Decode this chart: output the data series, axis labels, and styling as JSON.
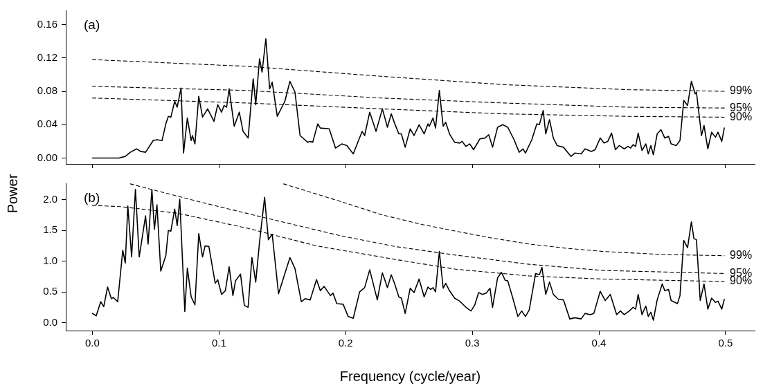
{
  "chart_data": [
    {
      "type": "line",
      "title": "(a)",
      "ylabel": "Power",
      "xlim": [
        -0.021,
        0.523
      ],
      "xticks": [
        {
          "value": 0,
          "label": null
        },
        {
          "value": 0.1,
          "label": null
        },
        {
          "value": 0.2,
          "label": null
        },
        {
          "value": 0.3,
          "label": null
        },
        {
          "value": 0.4,
          "label": null
        },
        {
          "value": 0.5,
          "label": null
        }
      ],
      "ylim": [
        -0.007,
        0.177
      ],
      "yticks": [
        {
          "value": 0,
          "label": "0.00"
        },
        {
          "value": 0.04,
          "label": "0.04"
        },
        {
          "value": 0.08,
          "label": "0.08"
        },
        {
          "value": 0.12,
          "label": "0.12"
        },
        {
          "value": 0.16,
          "label": "0.16"
        }
      ],
      "tick_labels": "y",
      "legend": false,
      "grid": false,
      "marker": "none",
      "series": [
        {
          "color": "#000000",
          "line_style": "solid",
          "x": [
            0,
            0.021,
            0.026,
            0.03,
            0.035,
            0.038,
            0.042,
            0.048,
            0.051,
            0.055,
            0.058,
            0.06,
            0.062,
            0.065,
            0.067,
            0.07,
            0.072,
            0.075,
            0.078,
            0.079,
            0.081,
            0.084,
            0.087,
            0.091,
            0.096,
            0.099,
            0.102,
            0.104,
            0.106,
            0.108,
            0.112,
            0.116,
            0.119,
            0.123,
            0.127,
            0.129,
            0.132,
            0.134,
            0.137,
            0.14,
            0.142,
            0.146,
            0.152,
            0.156,
            0.16,
            0.164,
            0.17,
            0.172,
            0.174,
            0.178,
            0.18,
            0.187,
            0.192,
            0.197,
            0.201,
            0.206,
            0.213,
            0.215,
            0.219,
            0.224,
            0.229,
            0.233,
            0.236,
            0.2386,
            0.242,
            0.244,
            0.247,
            0.251,
            0.254,
            0.258,
            0.262,
            0.265,
            0.266,
            0.269,
            0.271,
            0.274,
            0.277,
            0.279,
            0.282,
            0.286,
            0.29,
            0.292,
            0.295,
            0.298,
            0.301,
            0.306,
            0.31,
            0.313,
            0.316,
            0.32,
            0.324,
            0.328,
            0.333,
            0.337,
            0.34,
            0.342,
            0.347,
            0.351,
            0.353,
            0.356,
            0.358,
            0.361,
            0.364,
            0.367,
            0.372,
            0.378,
            0.381,
            0.386,
            0.389,
            0.394,
            0.397,
            0.401,
            0.404,
            0.407,
            0.41,
            0.413,
            0.416,
            0.42,
            0.423,
            0.425,
            0.427,
            0.429,
            0.431,
            0.434,
            0.437,
            0.439,
            0.441,
            0.443,
            0.446,
            0.449,
            0.452,
            0.455,
            0.457,
            0.461,
            0.464,
            0.467,
            0.47,
            0.473,
            0.476,
            0.477,
            0.481,
            0.483,
            0.486,
            0.489,
            0.492,
            0.494,
            0.497,
            0.499
          ],
          "values": [
            0,
            0,
            0.002,
            0.007,
            0.011,
            0.008,
            0.007,
            0.021,
            0.022,
            0.021,
            0.041,
            0.05,
            0.049,
            0.068,
            0.061,
            0.084,
            0.006,
            0.048,
            0.021,
            0.027,
            0.017,
            0.074,
            0.049,
            0.059,
            0.044,
            0.064,
            0.055,
            0.063,
            0.061,
            0.083,
            0.038,
            0.055,
            0.032,
            0.024,
            0.095,
            0.064,
            0.119,
            0.103,
            0.143,
            0.083,
            0.091,
            0.05,
            0.068,
            0.092,
            0.079,
            0.027,
            0.019,
            0.02,
            0.019,
            0.041,
            0.036,
            0.035,
            0.012,
            0.017,
            0.015,
            0.005,
            0.032,
            0.027,
            0.055,
            0.032,
            0.059,
            0.037,
            0.053,
            0.042,
            0.029,
            0.029,
            0.013,
            0.035,
            0.027,
            0.04,
            0.029,
            0.041,
            0.038,
            0.048,
            0.036,
            0.081,
            0.038,
            0.043,
            0.029,
            0.019,
            0.018,
            0.02,
            0.014,
            0.017,
            0.01,
            0.023,
            0.024,
            0.028,
            0.013,
            0.037,
            0.04,
            0.037,
            0.022,
            0.007,
            0.011,
            0.006,
            0.022,
            0.041,
            0.04,
            0.057,
            0.029,
            0.046,
            0.024,
            0.015,
            0.013,
            0.002,
            0.006,
            0.005,
            0.011,
            0.008,
            0.01,
            0.024,
            0.018,
            0.02,
            0.03,
            0.01,
            0.015,
            0.011,
            0.014,
            0.012,
            0.016,
            0.014,
            0.03,
            0.009,
            0.017,
            0.005,
            0.015,
            0.004,
            0.029,
            0.034,
            0.024,
            0.026,
            0.017,
            0.015,
            0.021,
            0.069,
            0.063,
            0.092,
            0.077,
            0.079,
            0.027,
            0.039,
            0.011,
            0.031,
            0.025,
            0.031,
            0.02,
            0.036
          ]
        },
        {
          "name": "99%",
          "color": "#000000",
          "line_style": "dashed",
          "x": [
            0,
            0.122,
            0.228,
            0.325,
            0.423,
            0.499
          ],
          "values": [
            0.118,
            0.11,
            0.098,
            0.088,
            0.082,
            0.08
          ]
        },
        {
          "name": "95%",
          "color": "#000000",
          "line_style": "dashed",
          "x": [
            0,
            0.122,
            0.228,
            0.325,
            0.423,
            0.499
          ],
          "values": [
            0.086,
            0.081,
            0.072,
            0.066,
            0.061,
            0.06
          ]
        },
        {
          "name": "90%",
          "color": "#000000",
          "line_style": "dashed",
          "x": [
            0,
            0.122,
            0.228,
            0.325,
            0.423,
            0.499
          ],
          "values": [
            0.072,
            0.066,
            0.059,
            0.053,
            0.05,
            0.049
          ]
        }
      ]
    },
    {
      "type": "line",
      "title": "(b)",
      "xlabel": "Frequency (cycle/year)",
      "xlim": [
        -0.021,
        0.523
      ],
      "xticks": [
        {
          "value": 0,
          "label": "0.0"
        },
        {
          "value": 0.1,
          "label": "0.1"
        },
        {
          "value": 0.2,
          "label": "0.2"
        },
        {
          "value": 0.3,
          "label": "0.3"
        },
        {
          "value": 0.4,
          "label": "0.4"
        },
        {
          "value": 0.5,
          "label": "0.5"
        }
      ],
      "ylim": [
        -0.13,
        2.27
      ],
      "yticks": [
        {
          "value": 0,
          "label": "0.0"
        },
        {
          "value": 0.5,
          "label": "0.5"
        },
        {
          "value": 1,
          "label": "1.0"
        },
        {
          "value": 1.5,
          "label": "1.5"
        },
        {
          "value": 2,
          "label": "2.0"
        }
      ],
      "legend": false,
      "grid": false,
      "marker": "none",
      "series": [
        {
          "color": "#000000",
          "line_style": "solid",
          "x": [
            0,
            0.003,
            0.0066,
            0.009,
            0.012,
            0.015,
            0.0165,
            0.02,
            0.024,
            0.026,
            0.028,
            0.031,
            0.034,
            0.037,
            0.042,
            0.044,
            0.047,
            0.049,
            0.051,
            0.054,
            0.058,
            0.06,
            0.062,
            0.065,
            0.067,
            0.069,
            0.073,
            0.075,
            0.078,
            0.081,
            0.084,
            0.087,
            0.089,
            0.092,
            0.097,
            0.099,
            0.102,
            0.105,
            0.108,
            0.111,
            0.113,
            0.117,
            0.12,
            0.123,
            0.126,
            0.129,
            0.132,
            0.136,
            0.139,
            0.142,
            0.147,
            0.152,
            0.156,
            0.16,
            0.165,
            0.168,
            0.172,
            0.177,
            0.18,
            0.183,
            0.188,
            0.19,
            0.193,
            0.198,
            0.202,
            0.206,
            0.211,
            0.215,
            0.219,
            0.225,
            0.229,
            0.233,
            0.236,
            0.2386,
            0.242,
            0.244,
            0.247,
            0.251,
            0.254,
            0.258,
            0.262,
            0.265,
            0.267,
            0.269,
            0.271,
            0.274,
            0.277,
            0.279,
            0.282,
            0.286,
            0.29,
            0.295,
            0.299,
            0.302,
            0.305,
            0.308,
            0.311,
            0.314,
            0.316,
            0.32,
            0.323,
            0.326,
            0.328,
            0.332,
            0.336,
            0.339,
            0.342,
            0.345,
            0.35,
            0.353,
            0.355,
            0.358,
            0.361,
            0.364,
            0.368,
            0.372,
            0.377,
            0.381,
            0.386,
            0.389,
            0.393,
            0.396,
            0.401,
            0.405,
            0.409,
            0.414,
            0.417,
            0.42,
            0.424,
            0.427,
            0.429,
            0.431,
            0.434,
            0.437,
            0.439,
            0.441,
            0.443,
            0.446,
            0.45,
            0.452,
            0.455,
            0.457,
            0.462,
            0.464,
            0.467,
            0.47,
            0.473,
            0.475,
            0.477,
            0.48,
            0.483,
            0.486,
            0.489,
            0.492,
            0.494,
            0.497,
            0.499
          ],
          "values": [
            0.15,
            0.11,
            0.34,
            0.26,
            0.58,
            0.39,
            0.41,
            0.34,
            1.18,
            0.97,
            1.9,
            1.07,
            2.17,
            1.07,
            1.74,
            1.28,
            2.17,
            1.52,
            1.92,
            0.84,
            1.09,
            1.5,
            1.49,
            1.85,
            1.58,
            2.01,
            0.18,
            0.89,
            0.42,
            0.29,
            1.45,
            1.07,
            1.25,
            1.24,
            0.64,
            0.7,
            0.46,
            0.52,
            0.91,
            0.44,
            0.68,
            0.79,
            0.28,
            0.25,
            1.06,
            0.66,
            1.31,
            2.04,
            1.35,
            1.44,
            0.47,
            0.8,
            1.06,
            0.88,
            0.34,
            0.39,
            0.37,
            0.7,
            0.52,
            0.59,
            0.44,
            0.48,
            0.31,
            0.3,
            0.1,
            0.07,
            0.5,
            0.57,
            0.86,
            0.37,
            0.81,
            0.57,
            0.78,
            0.64,
            0.42,
            0.4,
            0.15,
            0.56,
            0.49,
            0.71,
            0.42,
            0.58,
            0.54,
            0.57,
            0.5,
            1.16,
            0.56,
            0.64,
            0.52,
            0.4,
            0.35,
            0.25,
            0.19,
            0.29,
            0.49,
            0.46,
            0.48,
            0.56,
            0.25,
            0.73,
            0.82,
            0.69,
            0.68,
            0.4,
            0.1,
            0.19,
            0.1,
            0.21,
            0.8,
            0.78,
            0.9,
            0.46,
            0.66,
            0.46,
            0.38,
            0.37,
            0.06,
            0.08,
            0.06,
            0.15,
            0.13,
            0.15,
            0.51,
            0.36,
            0.46,
            0.13,
            0.19,
            0.13,
            0.19,
            0.25,
            0.22,
            0.46,
            0.13,
            0.27,
            0.1,
            0.17,
            0.04,
            0.37,
            0.63,
            0.52,
            0.54,
            0.36,
            0.31,
            0.44,
            1.34,
            1.22,
            1.64,
            1.37,
            1.35,
            0.36,
            0.63,
            0.22,
            0.4,
            0.33,
            0.35,
            0.22,
            0.38
          ]
        },
        {
          "name": "99%",
          "color": "#000000",
          "line_style": "dashed",
          "x": [
            0.151,
            0.195,
            0.228,
            0.26,
            0.287,
            0.315,
            0.345,
            0.375,
            0.403,
            0.45,
            0.499
          ],
          "values": [
            2.26,
            1.98,
            1.76,
            1.6,
            1.49,
            1.38,
            1.28,
            1.21,
            1.16,
            1.11,
            1.09
          ]
        },
        {
          "name": "95%",
          "color": "#000000",
          "line_style": "dashed",
          "x": [
            0.03,
            0.086,
            0.14,
            0.195,
            0.239,
            0.287,
            0.345,
            0.403,
            0.499
          ],
          "values": [
            2.26,
            1.96,
            1.69,
            1.42,
            1.24,
            1.1,
            0.95,
            0.85,
            0.8
          ]
        },
        {
          "name": "90%",
          "color": "#000000",
          "line_style": "dashed",
          "x": [
            0,
            0.022,
            0.068,
            0.122,
            0.177,
            0.239,
            0.287,
            0.345,
            0.403,
            0.499
          ],
          "values": [
            1.91,
            1.89,
            1.78,
            1.54,
            1.25,
            1.03,
            0.87,
            0.76,
            0.71,
            0.67
          ]
        }
      ]
    }
  ]
}
